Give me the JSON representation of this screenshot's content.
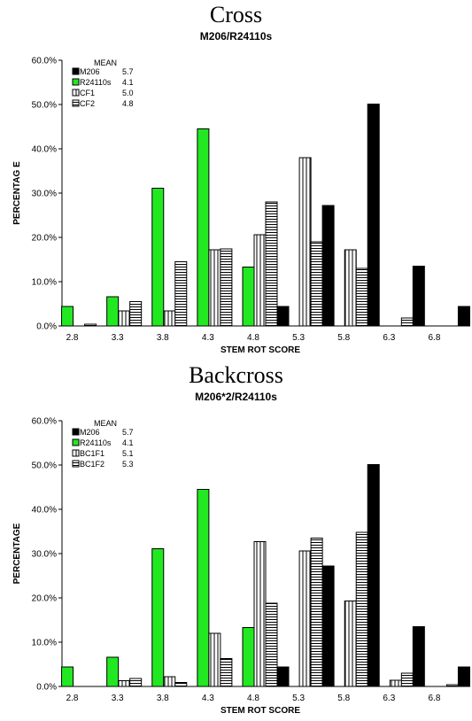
{
  "colors": {
    "M206": "#000000",
    "R24110s": "#22e822",
    "hatch_stroke": "#000000"
  },
  "chart_data": [
    {
      "type": "bar",
      "section_title": "Cross",
      "title": "M206/R24110s",
      "xlabel": "STEM ROT SCORE",
      "ylabel": "PERCENTAG E",
      "ylim": [
        0,
        60
      ],
      "yticks": [
        "0.0%",
        "10.0%",
        "20.0%",
        "30.0%",
        "40.0%",
        "50.0%",
        "60.0%"
      ],
      "categories": [
        "2.8",
        "3.3",
        "3.8",
        "4.3",
        "4.8",
        "5.3",
        "5.8",
        "6.3",
        "6.8"
      ],
      "legend_header": "MEAN",
      "series": [
        {
          "name": "M206",
          "mean": "5.7",
          "pattern": "solid-black",
          "values": [
            0,
            0,
            0,
            0,
            4.4,
            27.2,
            50.1,
            13.5,
            4.4
          ]
        },
        {
          "name": "R24110s",
          "mean": "4.1",
          "pattern": "solid-green",
          "values": [
            4.4,
            6.6,
            31.1,
            44.5,
            13.3,
            0,
            0,
            0,
            0
          ]
        },
        {
          "name": "CF1",
          "mean": "5.0",
          "pattern": "vertical",
          "values": [
            0,
            3.4,
            3.4,
            17.2,
            20.6,
            38.0,
            17.2,
            0,
            0
          ]
        },
        {
          "name": "CF2",
          "mean": "4.8",
          "pattern": "horizontal",
          "values": [
            0.4,
            5.5,
            14.5,
            17.4,
            28.0,
            19.0,
            13.0,
            1.8,
            0
          ]
        }
      ]
    },
    {
      "type": "bar",
      "section_title": "Backcross",
      "title": "M206*2/R24110s",
      "xlabel": "STEM ROT SCORE",
      "ylabel": "PERCENTAGE",
      "ylim": [
        0,
        60
      ],
      "yticks": [
        "0.0%",
        "10.0%",
        "20.0%",
        "30.0%",
        "40.0%",
        "50.0%",
        "60.0%"
      ],
      "categories": [
        "2.8",
        "3.3",
        "3.8",
        "4.3",
        "4.8",
        "5.3",
        "5.8",
        "6.3",
        "6.8"
      ],
      "legend_header": "MEAN",
      "series": [
        {
          "name": "M206",
          "mean": "5.7",
          "pattern": "solid-black",
          "values": [
            0,
            0,
            0,
            0,
            4.4,
            27.2,
            50.1,
            13.5,
            4.4
          ]
        },
        {
          "name": "R24110s",
          "mean": "4.1",
          "pattern": "solid-green",
          "values": [
            4.4,
            6.6,
            31.1,
            44.5,
            13.3,
            0,
            0,
            0,
            0
          ]
        },
        {
          "name": "BC1F1",
          "mean": "5.1",
          "pattern": "vertical",
          "values": [
            0,
            1.3,
            2.2,
            12.0,
            32.7,
            30.6,
            19.3,
            1.4,
            0
          ]
        },
        {
          "name": "BC1F2",
          "mean": "5.3",
          "pattern": "horizontal",
          "values": [
            0,
            1.8,
            0.9,
            6.3,
            18.8,
            33.5,
            34.8,
            3.0,
            0.4
          ]
        }
      ]
    }
  ]
}
